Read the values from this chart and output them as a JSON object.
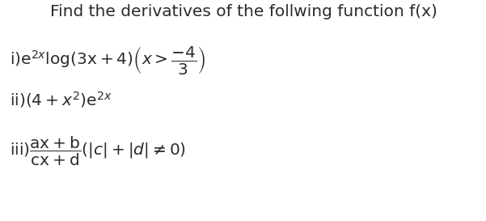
{
  "title": "Find the derivatives of the follwing function f(x)",
  "bg_color": "#ffffff",
  "text_color": "#2b2b2b",
  "fig_width": 6.01,
  "fig_height": 2.73,
  "dpi": 100,
  "title_fontsize": 14.5,
  "body_fontsize": 14.5
}
